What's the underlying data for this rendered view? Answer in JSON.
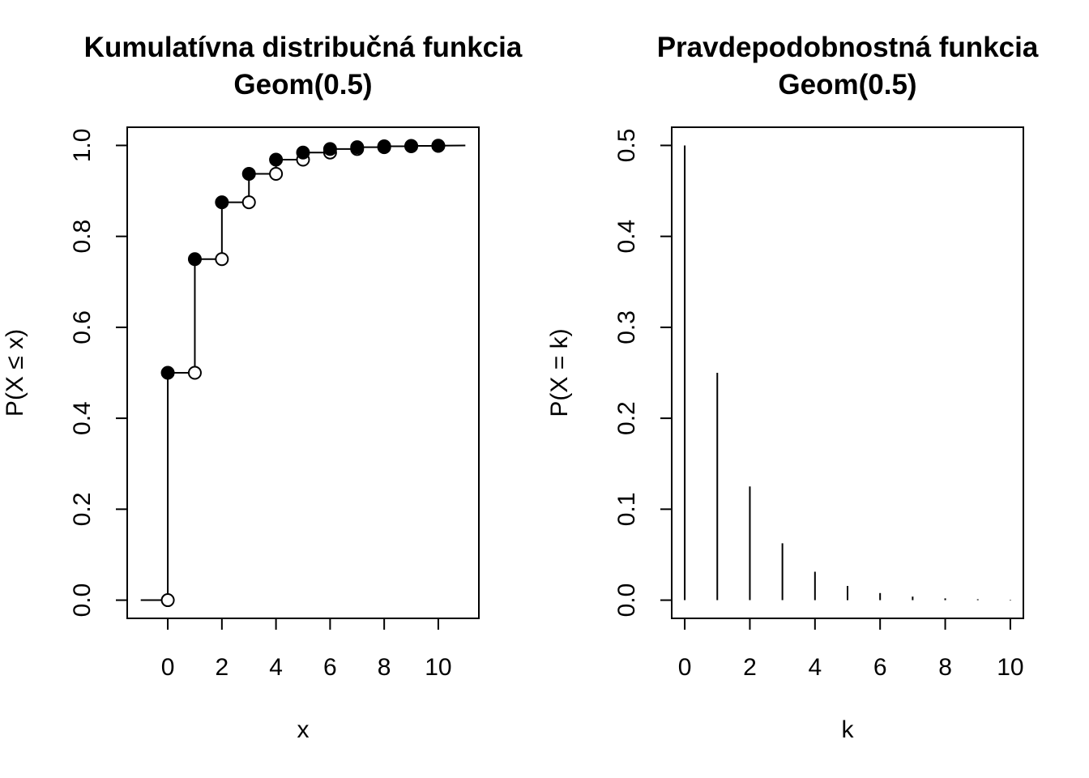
{
  "chart_data": [
    {
      "type": "step",
      "title": "Kumulatívna distribučná funkcia",
      "subtitle": "Geom(0.5)",
      "xlabel": "x",
      "ylabel": "P(X ≤ x)",
      "xlim": [
        -1.5,
        11.5
      ],
      "ylim": [
        -0.04,
        1.04
      ],
      "x_ticks": [
        "0",
        "2",
        "4",
        "6",
        "8",
        "10"
      ],
      "y_ticks": [
        "0.0",
        "0.2",
        "0.4",
        "0.6",
        "0.8",
        "1.0"
      ],
      "x": [
        0,
        1,
        2,
        3,
        4,
        5,
        6,
        7,
        8,
        9,
        10
      ],
      "values": [
        0.5,
        0.75,
        0.875,
        0.9375,
        0.96875,
        0.984375,
        0.9921875,
        0.99609375,
        0.998046875,
        0.9990234375,
        0.99951171875
      ],
      "left_value": 0,
      "right_value": 1,
      "grid": false
    },
    {
      "type": "bar",
      "title": "Pravdepodobnostná funkcia",
      "subtitle": "Geom(0.5)",
      "xlabel": "k",
      "ylabel": "P(X = k)",
      "xlim": [
        -0.4,
        10.4
      ],
      "ylim": [
        -0.02,
        0.52
      ],
      "x_ticks": [
        "0",
        "2",
        "4",
        "6",
        "8",
        "10"
      ],
      "y_ticks": [
        "0.0",
        "0.1",
        "0.2",
        "0.3",
        "0.4",
        "0.5"
      ],
      "x": [
        0,
        1,
        2,
        3,
        4,
        5,
        6,
        7,
        8,
        9,
        10
      ],
      "values": [
        0.5,
        0.25,
        0.125,
        0.0625,
        0.03125,
        0.015625,
        0.0078125,
        0.00390625,
        0.001953125,
        0.0009765625,
        0.00048828125
      ],
      "grid": false
    }
  ]
}
